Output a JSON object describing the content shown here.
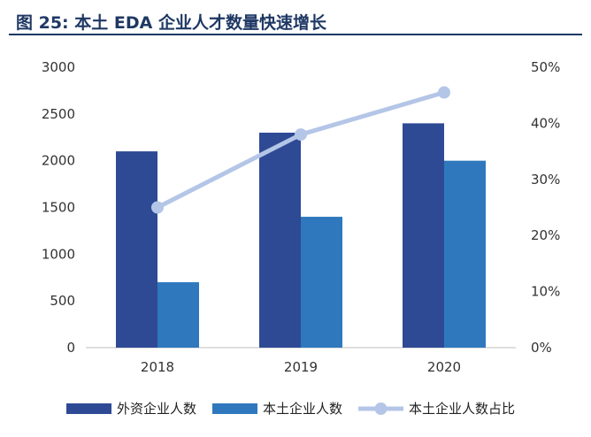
{
  "figure": {
    "title": "图 25: 本土 EDA 企业人才数量快速增长"
  },
  "colors": {
    "foreign": "#2e4a94",
    "domestic": "#2f78bd",
    "ratio": "#b4c6e7",
    "title": "#1f3864"
  },
  "chart_data": {
    "type": "bar",
    "title": "图 25: 本土 EDA 企业人才数量快速增长",
    "categories": [
      "2018",
      "2019",
      "2020"
    ],
    "series": [
      {
        "name": "外资企业人数",
        "type": "bar",
        "axis": "left",
        "values": [
          2100,
          2300,
          2400
        ]
      },
      {
        "name": "本土企业人数",
        "type": "bar",
        "axis": "left",
        "values": [
          700,
          1400,
          2000
        ]
      },
      {
        "name": "本土企业人数占比",
        "type": "line",
        "axis": "right",
        "values": [
          25,
          38,
          45.5
        ]
      }
    ],
    "ylim": [
      0,
      3000
    ],
    "yticks": [
      "0",
      "500",
      "1000",
      "1500",
      "2000",
      "2500",
      "3000"
    ],
    "y2lim": [
      0,
      50
    ],
    "y2ticks": [
      "0%",
      "10%",
      "20%",
      "30%",
      "40%",
      "50%"
    ],
    "grid": false,
    "legend_position": "bottom"
  }
}
